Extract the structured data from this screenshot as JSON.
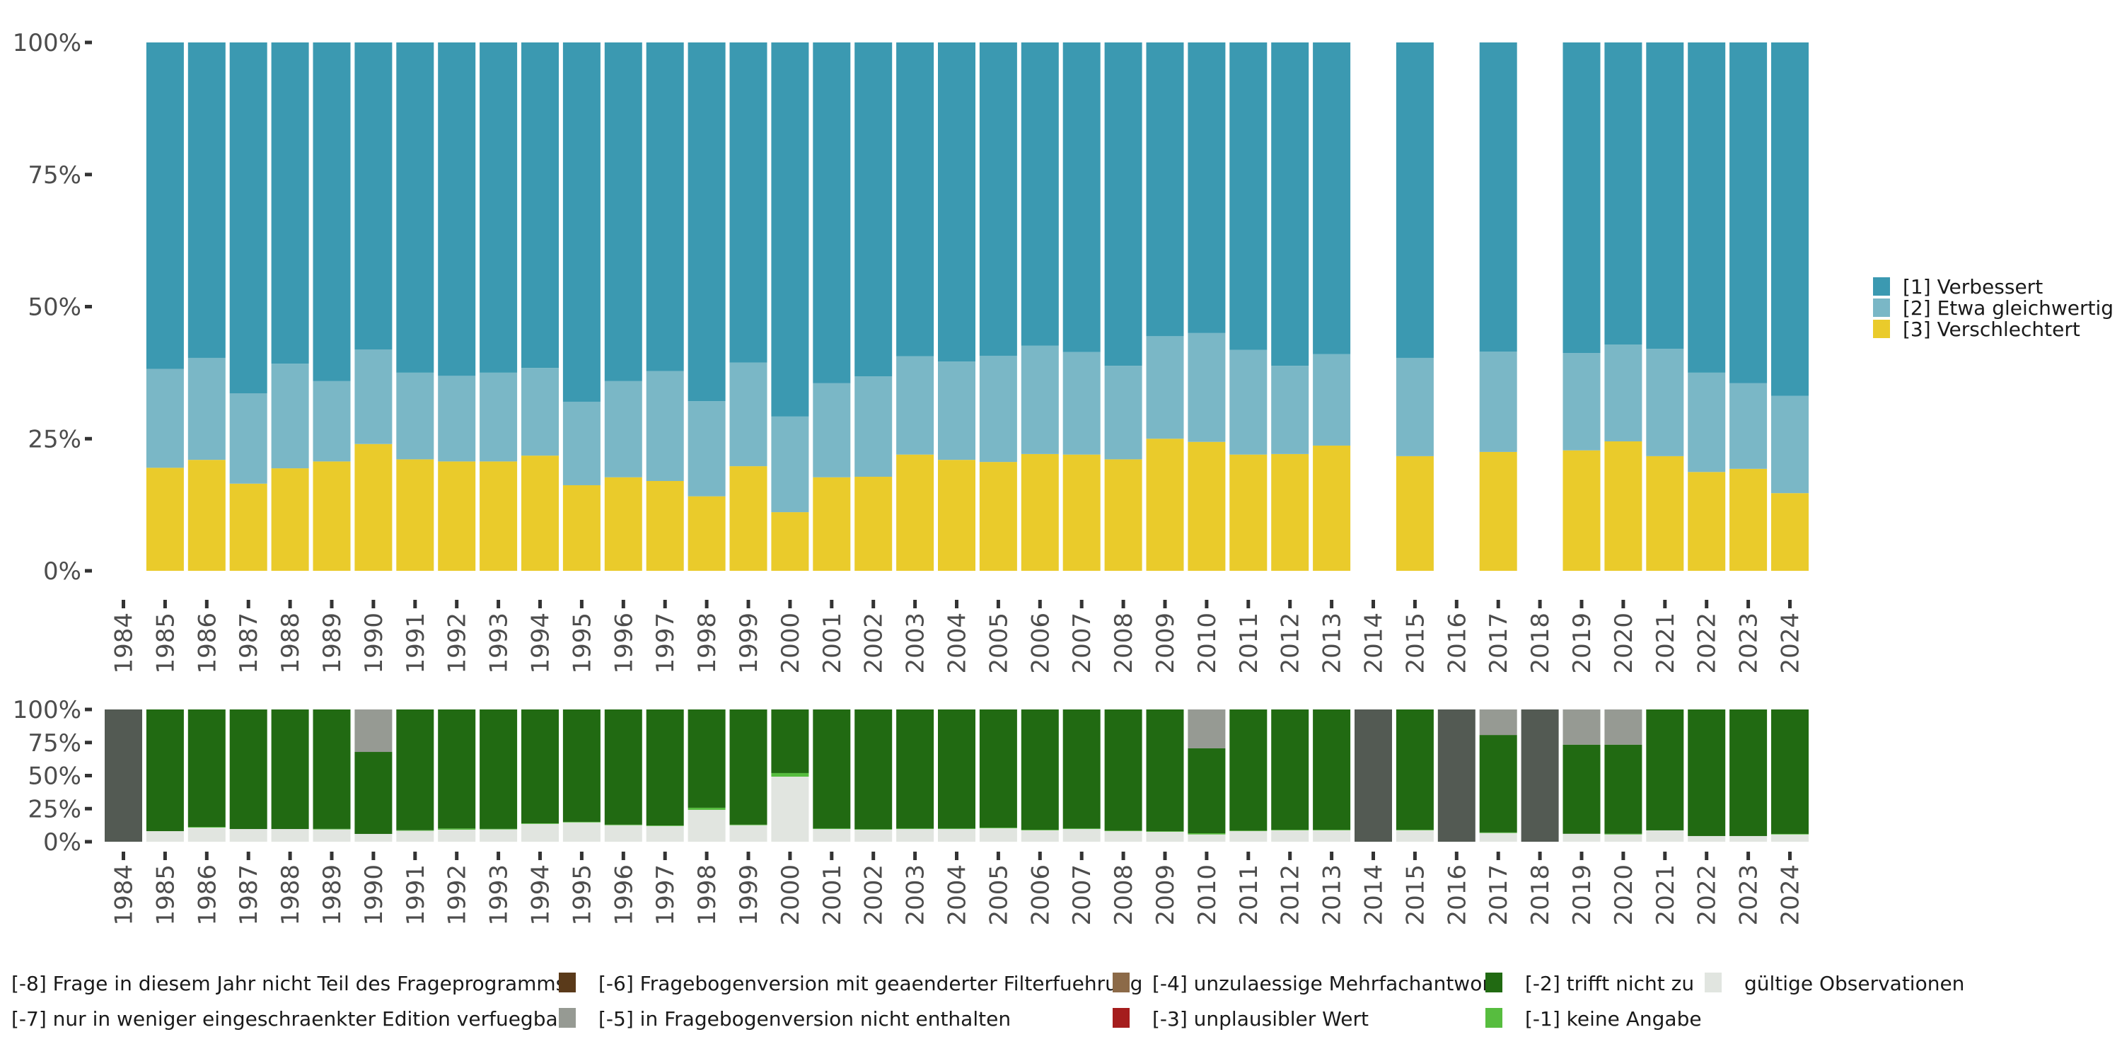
{
  "chart_data": [
    {
      "type": "bar",
      "stacked": true,
      "title": "",
      "xlabel": "",
      "ylabel": "",
      "ylim": [
        0,
        1
      ],
      "y_ticks": [
        "0%",
        "25%",
        "50%",
        "75%",
        "100%"
      ],
      "categories": [
        "1984",
        "1985",
        "1986",
        "1987",
        "1988",
        "1989",
        "1990",
        "1991",
        "1992",
        "1993",
        "1994",
        "1995",
        "1996",
        "1997",
        "1998",
        "1999",
        "2000",
        "2001",
        "2002",
        "2003",
        "2004",
        "2005",
        "2006",
        "2007",
        "2008",
        "2009",
        "2010",
        "2011",
        "2012",
        "2013",
        "2014",
        "2015",
        "2016",
        "2017",
        "2018",
        "2019",
        "2020",
        "2021",
        "2022",
        "2023",
        "2024"
      ],
      "legend_position": "right",
      "series": [
        {
          "name": "[3] Verschlechtert",
          "color": "#EACB2B",
          "values": [
            null,
            0.195,
            0.21,
            0.165,
            0.194,
            0.207,
            0.24,
            0.211,
            0.207,
            0.207,
            0.218,
            0.162,
            0.177,
            0.17,
            0.141,
            0.198,
            0.111,
            0.177,
            0.178,
            0.22,
            0.21,
            0.206,
            0.221,
            0.22,
            0.211,
            0.25,
            0.244,
            0.22,
            0.221,
            0.237,
            null,
            0.217,
            null,
            0.225,
            null,
            0.228,
            0.245,
            0.217,
            0.187,
            0.193,
            0.147
          ]
        },
        {
          "name": "[2] Etwa gleichwertig",
          "color": "#7AB7C6",
          "values": [
            null,
            0.187,
            0.193,
            0.171,
            0.198,
            0.152,
            0.179,
            0.164,
            0.162,
            0.168,
            0.166,
            0.158,
            0.182,
            0.208,
            0.18,
            0.196,
            0.181,
            0.178,
            0.19,
            0.186,
            0.186,
            0.201,
            0.205,
            0.194,
            0.177,
            0.194,
            0.206,
            0.198,
            0.167,
            0.173,
            null,
            0.186,
            null,
            0.19,
            null,
            0.184,
            0.183,
            0.203,
            0.188,
            0.162,
            0.184
          ]
        },
        {
          "name": "[1] Verbessert",
          "color": "#3B99B1",
          "values": [
            null,
            0.618,
            0.597,
            0.664,
            0.608,
            0.641,
            0.581,
            0.625,
            0.631,
            0.625,
            0.616,
            0.68,
            0.641,
            0.622,
            0.679,
            0.606,
            0.708,
            0.645,
            0.632,
            0.594,
            0.604,
            0.593,
            0.574,
            0.586,
            0.612,
            0.556,
            0.55,
            0.582,
            0.612,
            0.59,
            null,
            0.597,
            null,
            0.585,
            null,
            0.588,
            0.572,
            0.58,
            0.625,
            0.645,
            0.669
          ]
        }
      ]
    },
    {
      "type": "bar",
      "stacked": true,
      "title": "",
      "xlabel": "",
      "ylabel": "",
      "ylim": [
        0,
        1
      ],
      "y_ticks": [
        "0%",
        "25%",
        "50%",
        "75%",
        "100%"
      ],
      "categories": [
        "1984",
        "1985",
        "1986",
        "1987",
        "1988",
        "1989",
        "1990",
        "1991",
        "1992",
        "1993",
        "1994",
        "1995",
        "1996",
        "1997",
        "1998",
        "1999",
        "2000",
        "2001",
        "2002",
        "2003",
        "2004",
        "2005",
        "2006",
        "2007",
        "2008",
        "2009",
        "2010",
        "2011",
        "2012",
        "2013",
        "2014",
        "2015",
        "2016",
        "2017",
        "2018",
        "2019",
        "2020",
        "2021",
        "2022",
        "2023",
        "2024"
      ],
      "legend_position": "bottom",
      "series": [
        {
          "name": "gültige Observationen",
          "color": "#E1E5E0",
          "values": [
            0,
            0.08,
            0.107,
            0.096,
            0.096,
            0.093,
            0.059,
            0.083,
            0.091,
            0.093,
            0.135,
            0.146,
            0.125,
            0.119,
            0.241,
            0.125,
            0.492,
            0.096,
            0.091,
            0.096,
            0.096,
            0.102,
            0.086,
            0.096,
            0.08,
            0.075,
            0.055,
            0.08,
            0.086,
            0.086,
            0,
            0.086,
            0,
            0.066,
            0,
            0.06,
            0.055,
            0.086,
            0.043,
            0.043,
            0.055
          ]
        },
        {
          "name": "[-1] keine Angabe",
          "color": "#57BD3F",
          "values": [
            0,
            0,
            0.005,
            0,
            0,
            0.004,
            0,
            0.004,
            0.009,
            0.004,
            0.004,
            0.004,
            0.004,
            0.004,
            0.016,
            0.004,
            0.027,
            0.004,
            0.004,
            0.004,
            0.004,
            0.004,
            0.004,
            0.004,
            0.004,
            0.004,
            0.009,
            0.004,
            0.004,
            0.004,
            0,
            0.004,
            0,
            0.004,
            0,
            0,
            0.005,
            0,
            0,
            0,
            0.004
          ]
        },
        {
          "name": "[-2] trifft nicht zu",
          "color": "#216A12",
          "values": [
            0,
            0.92,
            0.888,
            0.904,
            0.904,
            0.903,
            0.62,
            0.913,
            0.9,
            0.903,
            0.861,
            0.85,
            0.871,
            0.877,
            0.743,
            0.871,
            0.481,
            0.9,
            0.905,
            0.9,
            0.9,
            0.894,
            0.91,
            0.9,
            0.916,
            0.921,
            0.642,
            0.916,
            0.91,
            0.91,
            0,
            0.91,
            0,
            0.737,
            0,
            0.674,
            0.674,
            0.914,
            0.957,
            0.957,
            0.941
          ]
        },
        {
          "name": "[-3] unplausibler Wert",
          "color": "#A51D1D",
          "values": [
            0,
            0,
            0,
            0,
            0,
            0,
            0,
            0,
            0,
            0,
            0,
            0,
            0,
            0,
            0,
            0,
            0,
            0,
            0,
            0,
            0,
            0,
            0,
            0,
            0,
            0,
            0,
            0,
            0,
            0,
            0,
            0,
            0,
            0,
            0,
            0,
            0,
            0,
            0,
            0,
            0
          ]
        },
        {
          "name": "[-4] unzulaessige Mehrfachantwort",
          "color": "#8C6A48",
          "values": [
            0,
            0,
            0,
            0,
            0,
            0,
            0,
            0,
            0,
            0,
            0,
            0,
            0,
            0,
            0,
            0,
            0,
            0,
            0,
            0,
            0,
            0,
            0,
            0,
            0,
            0,
            0,
            0,
            0,
            0,
            0,
            0,
            0,
            0,
            0,
            0,
            0,
            0,
            0,
            0,
            0
          ]
        },
        {
          "name": "[-5] in Fragebogenversion nicht enthalten",
          "color": "#969A93",
          "values": [
            0,
            0,
            0,
            0,
            0,
            0,
            0.321,
            0,
            0,
            0,
            0,
            0,
            0,
            0,
            0,
            0,
            0,
            0,
            0,
            0,
            0,
            0,
            0,
            0,
            0,
            0,
            0.294,
            0,
            0,
            0,
            0,
            0,
            0,
            0.193,
            0,
            0.266,
            0.266,
            0,
            0,
            0,
            0
          ]
        },
        {
          "name": "[-6] Fragebogenversion mit geaenderter Filterfuehrung",
          "color": "#5A3A1A",
          "values": [
            0,
            0,
            0,
            0,
            0,
            0,
            0,
            0,
            0,
            0,
            0,
            0,
            0,
            0,
            0,
            0,
            0,
            0,
            0,
            0,
            0,
            0,
            0,
            0,
            0,
            0,
            0,
            0,
            0,
            0,
            0,
            0,
            0,
            0,
            0,
            0,
            0,
            0,
            0,
            0,
            0
          ]
        },
        {
          "name": "[-7] nur in weniger eingeschraenkter Edition verfuegbar",
          "color": "#C9CCC7",
          "values": [
            0,
            0,
            0,
            0,
            0,
            0,
            0,
            0,
            0,
            0,
            0,
            0,
            0,
            0,
            0,
            0,
            0,
            0,
            0,
            0,
            0,
            0,
            0,
            0,
            0,
            0,
            0,
            0,
            0,
            0,
            0,
            0,
            0,
            0,
            0,
            0,
            0,
            0,
            0,
            0,
            0
          ]
        },
        {
          "name": "[-8] Frage in diesem Jahr nicht Teil des Frageprogramms",
          "color": "#535A53",
          "values": [
            1,
            0,
            0,
            0,
            0,
            0,
            0,
            0,
            0,
            0,
            0,
            0,
            0,
            0,
            0,
            0,
            0,
            0,
            0,
            0,
            0,
            0,
            0,
            0,
            0,
            0,
            0,
            0,
            0,
            0,
            1,
            0,
            1,
            0,
            1,
            0,
            0,
            0,
            0,
            0,
            0
          ]
        }
      ]
    }
  ],
  "top_legend": [
    {
      "label": "[1] Verbessert",
      "color": "#3B99B1"
    },
    {
      "label": "[2] Etwa gleichwertig",
      "color": "#7AB7C6"
    },
    {
      "label": "[3] Verschlechtert",
      "color": "#EACB2B"
    }
  ],
  "bottom_legend": [
    {
      "label": "[-8] Frage in diesem Jahr nicht Teil des Frageprogramms",
      "color": "#535A53"
    },
    {
      "label": "[-7] nur in weniger eingeschraenkter Edition verfuegbar",
      "color": "#C9CCC7"
    },
    {
      "label": "[-6] Fragebogenversion mit geaenderter Filterfuehrung",
      "color": "#5A3A1A"
    },
    {
      "label": "[-5] in Fragebogenversion nicht enthalten",
      "color": "#969A93"
    },
    {
      "label": "[-4] unzulaessige Mehrfachantwort",
      "color": "#8C6A48"
    },
    {
      "label": "[-3] unplausibler Wert",
      "color": "#A51D1D"
    },
    {
      "label": "[-2] trifft nicht zu",
      "color": "#216A12"
    },
    {
      "label": "[-1] keine Angabe",
      "color": "#57BD3F"
    },
    {
      "label": "gültige Observationen",
      "color": "#E1E5E0"
    }
  ]
}
